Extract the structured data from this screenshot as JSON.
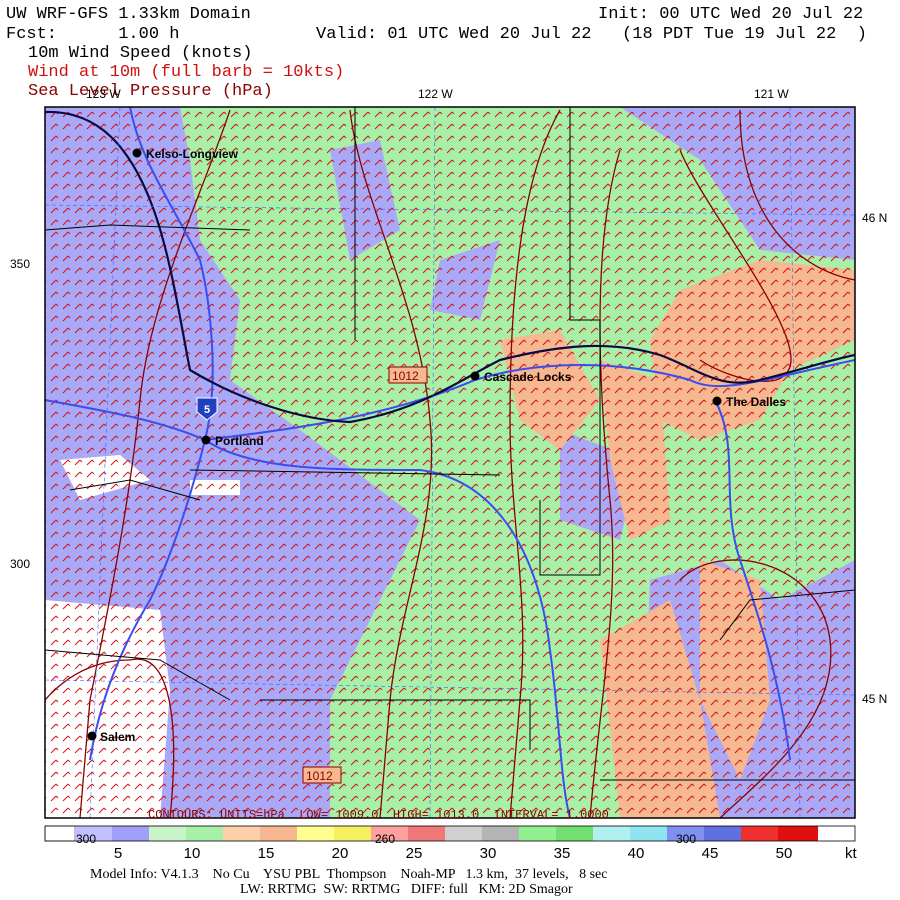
{
  "header": {
    "title": "UW WRF-GFS 1.33km Domain",
    "init": "Init: 00 UTC Wed 20 Jul 22",
    "forecast": "Fcst:      1.00 h",
    "valid": "Valid: 01 UTC Wed 20 Jul 22   (18 PDT Tue 19 Jul 22  )",
    "fields": [
      "10m Wind Speed (knots)",
      "Wind at 10m (full barb = 10kts)",
      "Sea Level Pressure (hPa)"
    ]
  },
  "map": {
    "longitudes": [
      "123 W",
      "122 W",
      "121 W"
    ],
    "latitudes": [
      "46 N",
      "45 N"
    ],
    "grid_labels": [
      "350",
      "300"
    ],
    "cities": [
      "Kelso-Longview",
      "Cascade Locks",
      "Portland",
      "The Dalles",
      "Salem"
    ],
    "interstate": "5",
    "isobar_labels": [
      "1012",
      "1012"
    ],
    "contour_info": "CONTOURS: UNITS=hPa  LOW= 1009.0  HIGH= 1013.0  INTERVAL= 1.0000",
    "bottom_grid_labels": [
      "300",
      "260",
      "300"
    ]
  },
  "colorbar": {
    "labels": [
      "5",
      "10",
      "15",
      "20",
      "25",
      "30",
      "35",
      "40",
      "45",
      "50"
    ],
    "unit": "kt"
  },
  "footer": [
    "Model Info: V4.1.3    No Cu    YSU PBL  Thompson    Noah-MP   1.3 km,  37 levels,   8 sec",
    "LW: RRTMG  SW: RRTMG   DIFF: full   KM: 2D Smagor"
  ]
}
